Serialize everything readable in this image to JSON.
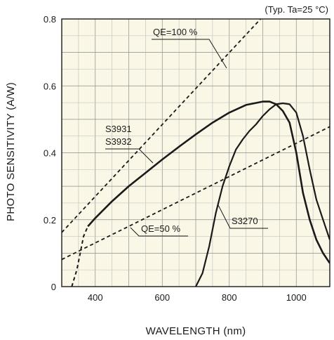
{
  "chart_data": {
    "type": "line",
    "note": "(Typ. Ta=25 °C)",
    "xlabel": "WAVELENGTH (nm)",
    "ylabel": "PHOTO SENSITIVITY (A/W)",
    "xlim": [
      300,
      1100
    ],
    "ylim": [
      0,
      0.8
    ],
    "x_ticks": [
      400,
      600,
      800,
      1000
    ],
    "y_ticks": [
      0,
      0.2,
      0.4,
      0.6,
      0.8
    ],
    "y_tick_labels": [
      "0",
      "0.2",
      "0.4",
      "0.6",
      "0.8"
    ],
    "grid": true,
    "background": "#fbf7e6",
    "line_color": "#1a1a1a",
    "series": [
      {
        "name": "S3931 S3932",
        "label_lines": [
          "S3931",
          "S3932"
        ],
        "style": "solid",
        "dashed_from": [
          [
            330,
            0.0
          ],
          [
            345,
            0.05
          ],
          [
            355,
            0.1
          ],
          [
            365,
            0.15
          ],
          [
            378,
            0.18
          ]
        ],
        "x": [
          378,
          400,
          450,
          500,
          550,
          600,
          650,
          700,
          750,
          800,
          850,
          900,
          920,
          940,
          960,
          980,
          1000,
          1020,
          1040,
          1060,
          1080,
          1100
        ],
        "y": [
          0.18,
          0.205,
          0.255,
          0.3,
          0.34,
          0.38,
          0.418,
          0.455,
          0.49,
          0.52,
          0.543,
          0.553,
          0.553,
          0.545,
          0.525,
          0.49,
          0.4,
          0.28,
          0.2,
          0.14,
          0.1,
          0.07
        ]
      },
      {
        "name": "S3270",
        "label_lines": [
          "S3270"
        ],
        "style": "solid",
        "x": [
          700,
          720,
          740,
          760,
          780,
          800,
          820,
          840,
          860,
          880,
          900,
          920,
          940,
          960,
          980,
          1000,
          1020,
          1040,
          1060,
          1080,
          1100
        ],
        "y": [
          0.0,
          0.04,
          0.12,
          0.22,
          0.3,
          0.36,
          0.41,
          0.44,
          0.465,
          0.485,
          0.51,
          0.53,
          0.545,
          0.548,
          0.545,
          0.52,
          0.45,
          0.35,
          0.26,
          0.2,
          0.14
        ]
      }
    ],
    "reference_lines": [
      {
        "name": "QE=100 %",
        "style": "dashed",
        "x": [
          300,
          900
        ],
        "y": [
          0.162,
          0.807
        ]
      },
      {
        "name": "QE=50 %",
        "style": "dashed",
        "x": [
          300,
          1100
        ],
        "y": [
          0.081,
          0.478
        ]
      }
    ]
  }
}
